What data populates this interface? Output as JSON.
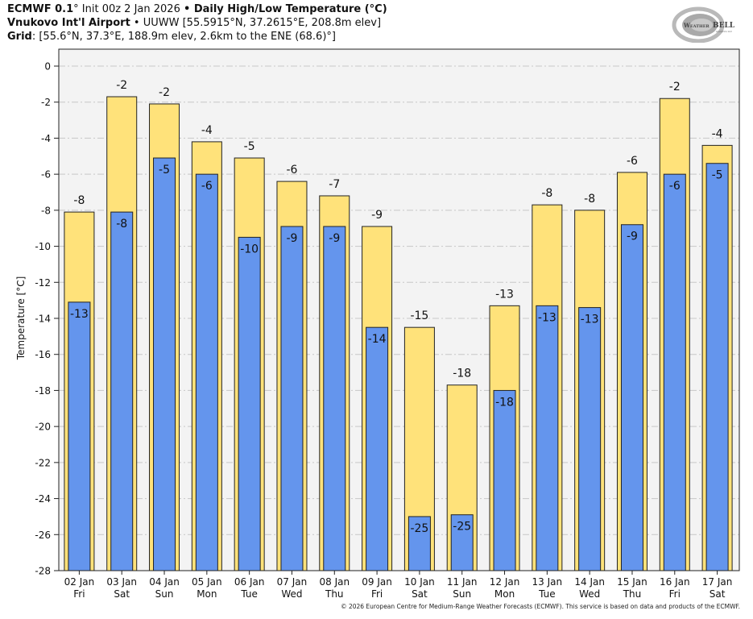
{
  "header": {
    "line1_model": "ECMWF 0.1",
    "line1_deg": "°",
    "line1_init": " Init 00z 2 Jan 2026 ",
    "line1_bullet": "•",
    "line1_title": " Daily High/Low Temperature (°C)",
    "line2_station": "Vnukovo Int'l Airport",
    "line2_rest": " • UUWW [55.5915°N, 37.2615°E, 208.8m elev]",
    "line3_label": "Grid",
    "line3_rest": ": [55.6°N, 37.3°E, 188.9m elev, 2.6km to the ENE (68.6)°]"
  },
  "logo": {
    "text_main": "WeatherBELL",
    "text_sub": "Analytics LLC",
    "icon": "swirl-logo-icon"
  },
  "footer": "© 2026 European Centre for Medium-Range Weather Forecasts (ECMWF). This service is based on data and products of the ECMWF.",
  "colors": {
    "high": "#ffe27a",
    "low": "#6495ed",
    "plot_bg": "#f3f3f3",
    "grid": "#c8c8c8",
    "edge": "#222222"
  },
  "chart_data": {
    "type": "bar",
    "title": "Daily High/Low Temperature (°C)",
    "xlabel": "",
    "ylabel": "Temperature [°C]",
    "ylim": [
      -28,
      0.9
    ],
    "yticks": [
      0,
      -2,
      -4,
      -6,
      -8,
      -10,
      -12,
      -14,
      -16,
      -18,
      -20,
      -22,
      -24,
      -26,
      -28
    ],
    "grid": true,
    "categories": [
      "02 Jan",
      "03 Jan",
      "04 Jan",
      "05 Jan",
      "06 Jan",
      "07 Jan",
      "08 Jan",
      "09 Jan",
      "10 Jan",
      "11 Jan",
      "12 Jan",
      "13 Jan",
      "14 Jan",
      "15 Jan",
      "16 Jan",
      "17 Jan"
    ],
    "weekdays": [
      "Fri",
      "Sat",
      "Sun",
      "Mon",
      "Tue",
      "Wed",
      "Thu",
      "Fri",
      "Sat",
      "Sun",
      "Mon",
      "Tue",
      "Wed",
      "Thu",
      "Fri",
      "Sat"
    ],
    "series": [
      {
        "name": "High",
        "values": [
          -8.1,
          -1.7,
          -2.1,
          -4.2,
          -5.1,
          -6.4,
          -7.2,
          -8.9,
          -14.5,
          -17.7,
          -13.3,
          -7.7,
          -8.0,
          -5.9,
          -1.8,
          -4.4
        ],
        "labels": [
          "-8",
          "-2",
          "-2",
          "-4",
          "-5",
          "-6",
          "-7",
          "-9",
          "-15",
          "-18",
          "-13",
          "-8",
          "-8",
          "-6",
          "-2",
          "-4"
        ]
      },
      {
        "name": "Low",
        "values": [
          -13.1,
          -8.1,
          -5.1,
          -6.0,
          -9.5,
          -8.9,
          -8.9,
          -14.5,
          -25.0,
          -24.9,
          -18.0,
          -13.3,
          -13.4,
          -8.8,
          -6.0,
          -5.4
        ],
        "labels": [
          "-13",
          "-8",
          "-5",
          "-6",
          "-10",
          "-9",
          "-9",
          "-14",
          "-25",
          "-25",
          "-18",
          "-13",
          "-13",
          "-9",
          "-6",
          "-5"
        ]
      }
    ]
  }
}
